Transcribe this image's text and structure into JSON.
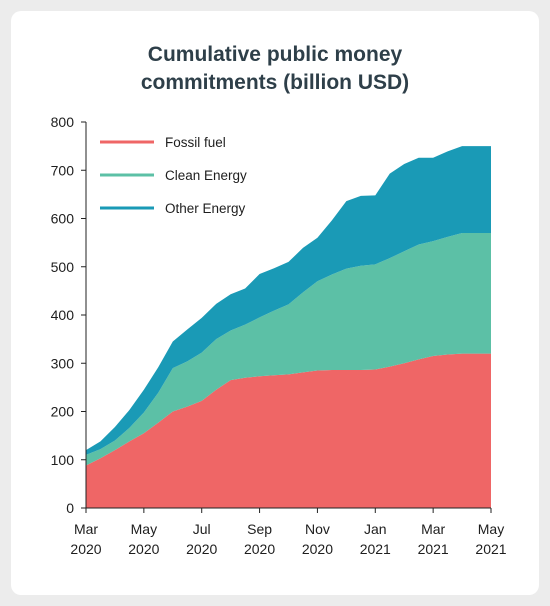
{
  "chart_data": {
    "type": "area",
    "stacked": true,
    "title_lines": [
      "Cumulative public money",
      "commitments (billion USD)"
    ],
    "xlabel": "",
    "ylabel": "",
    "ylim": [
      0,
      800
    ],
    "yticks": [
      0,
      100,
      200,
      300,
      400,
      500,
      600,
      700,
      800
    ],
    "xticks": [
      {
        "line1": "Mar",
        "line2": "2020"
      },
      {
        "line1": "May",
        "line2": "2020"
      },
      {
        "line1": "Jul",
        "line2": "2020"
      },
      {
        "line1": "Sep",
        "line2": "2020"
      },
      {
        "line1": "Nov",
        "line2": "2020"
      },
      {
        "line1": "Jan",
        "line2": "2021"
      },
      {
        "line1": "Mar",
        "line2": "2021"
      },
      {
        "line1": "May",
        "line2": "2021"
      }
    ],
    "x": [
      "2020-03",
      "2020-03b",
      "2020-04",
      "2020-04b",
      "2020-05",
      "2020-05b",
      "2020-06",
      "2020-06b",
      "2020-07",
      "2020-07b",
      "2020-08",
      "2020-08b",
      "2020-09",
      "2020-09b",
      "2020-10",
      "2020-10b",
      "2020-11",
      "2020-11b",
      "2020-12",
      "2020-12b",
      "2021-01",
      "2021-01b",
      "2021-02",
      "2021-02b",
      "2021-03",
      "2021-03b",
      "2021-04",
      "2021-04b",
      "2021-05"
    ],
    "x_index": [
      0,
      0.5,
      1,
      1.5,
      2,
      2.5,
      3,
      3.5,
      4,
      4.5,
      5,
      5.5,
      6,
      6.5,
      7,
      7.5,
      8,
      8.5,
      9,
      9.5,
      10,
      10.5,
      11,
      11.5,
      12,
      12.5,
      13,
      13.5,
      14
    ],
    "series": [
      {
        "name": "Fossil fuel",
        "color": "#ef6666",
        "values": [
          88,
          103,
          120,
          138,
          155,
          177,
          200,
          210,
          222,
          245,
          265,
          270,
          273,
          275,
          277,
          281,
          285,
          286,
          286,
          286,
          287,
          293,
          300,
          308,
          315,
          318,
          320,
          320,
          320
        ]
      },
      {
        "name": "Clean Energy",
        "color": "#5cc0a6",
        "values": [
          22,
          19,
          20,
          28,
          43,
          62,
          90,
          94,
          100,
          105,
          103,
          110,
          122,
          134,
          145,
          166,
          185,
          198,
          210,
          216,
          218,
          225,
          232,
          238,
          238,
          244,
          250,
          250,
          250
        ]
      },
      {
        "name": "Other Energy",
        "color": "#1a9ab6",
        "values": [
          10,
          16,
          28,
          37,
          47,
          53,
          55,
          66,
          72,
          73,
          75,
          75,
          90,
          88,
          88,
          92,
          90,
          112,
          140,
          145,
          143,
          175,
          181,
          180,
          173,
          177,
          180,
          180,
          180
        ]
      }
    ],
    "legend_position": "top-left",
    "grid": false
  }
}
